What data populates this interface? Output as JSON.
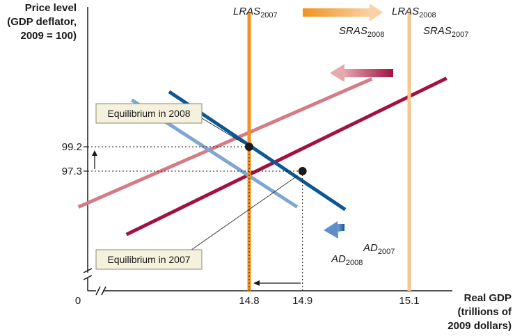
{
  "chart_data": {
    "type": "line",
    "y_axis_title": [
      "Price level",
      "(GDP deflator,",
      "2009 = 100)"
    ],
    "x_axis_title": [
      "Real GDP",
      "(trillions of",
      "2009 dollars)"
    ],
    "origin_label": "0",
    "x_ticks": [
      {
        "value": 14.8,
        "label": "14.8"
      },
      {
        "value": 14.9,
        "label": "14.9"
      },
      {
        "value": 15.1,
        "label": "15.1"
      }
    ],
    "y_ticks": [
      {
        "value": 99.2,
        "label": "99.2"
      },
      {
        "value": 97.3,
        "label": "97.3"
      }
    ],
    "series": [
      {
        "name": "LRAS2007",
        "base": "LRAS",
        "sub": "2007",
        "kind": "vertical",
        "color": "#f0931e",
        "x": 14.8
      },
      {
        "name": "LRAS2008",
        "base": "LRAS",
        "sub": "2008",
        "kind": "vertical",
        "color": "#f8c58e",
        "x": 15.1
      },
      {
        "name": "SRAS2007",
        "base": "SRAS",
        "sub": "2007",
        "kind": "line",
        "color": "#a3113f",
        "points": [
          [
            14.57,
            92.35
          ],
          [
            15.17,
            104.55
          ]
        ]
      },
      {
        "name": "SRAS2008",
        "base": "SRAS",
        "sub": "2008",
        "kind": "line",
        "color": "#d57b85",
        "points": [
          [
            14.48,
            94.5
          ],
          [
            15.03,
            104.5
          ]
        ]
      },
      {
        "name": "AD2007",
        "base": "AD",
        "sub": "2007",
        "kind": "line",
        "color": "#0c5896",
        "points": [
          [
            14.65,
            103.5
          ],
          [
            14.98,
            94.3
          ]
        ]
      },
      {
        "name": "AD2008",
        "base": "AD",
        "sub": "2008",
        "kind": "line",
        "color": "#7fa5d0",
        "points": [
          [
            14.58,
            102.85
          ],
          [
            14.89,
            94.5
          ]
        ]
      }
    ],
    "equilibria": [
      {
        "label": "Equilibrium in 2008",
        "x": 14.8,
        "y": 99.2
      },
      {
        "label": "Equilibrium in 2007",
        "x": 14.9,
        "y": 97.3
      }
    ],
    "colors": {
      "axis": "#1a1a1a",
      "point": "#1a1a1a",
      "callout_fill": "#f4f1dc",
      "callout_border": "#8a8a7a"
    }
  }
}
